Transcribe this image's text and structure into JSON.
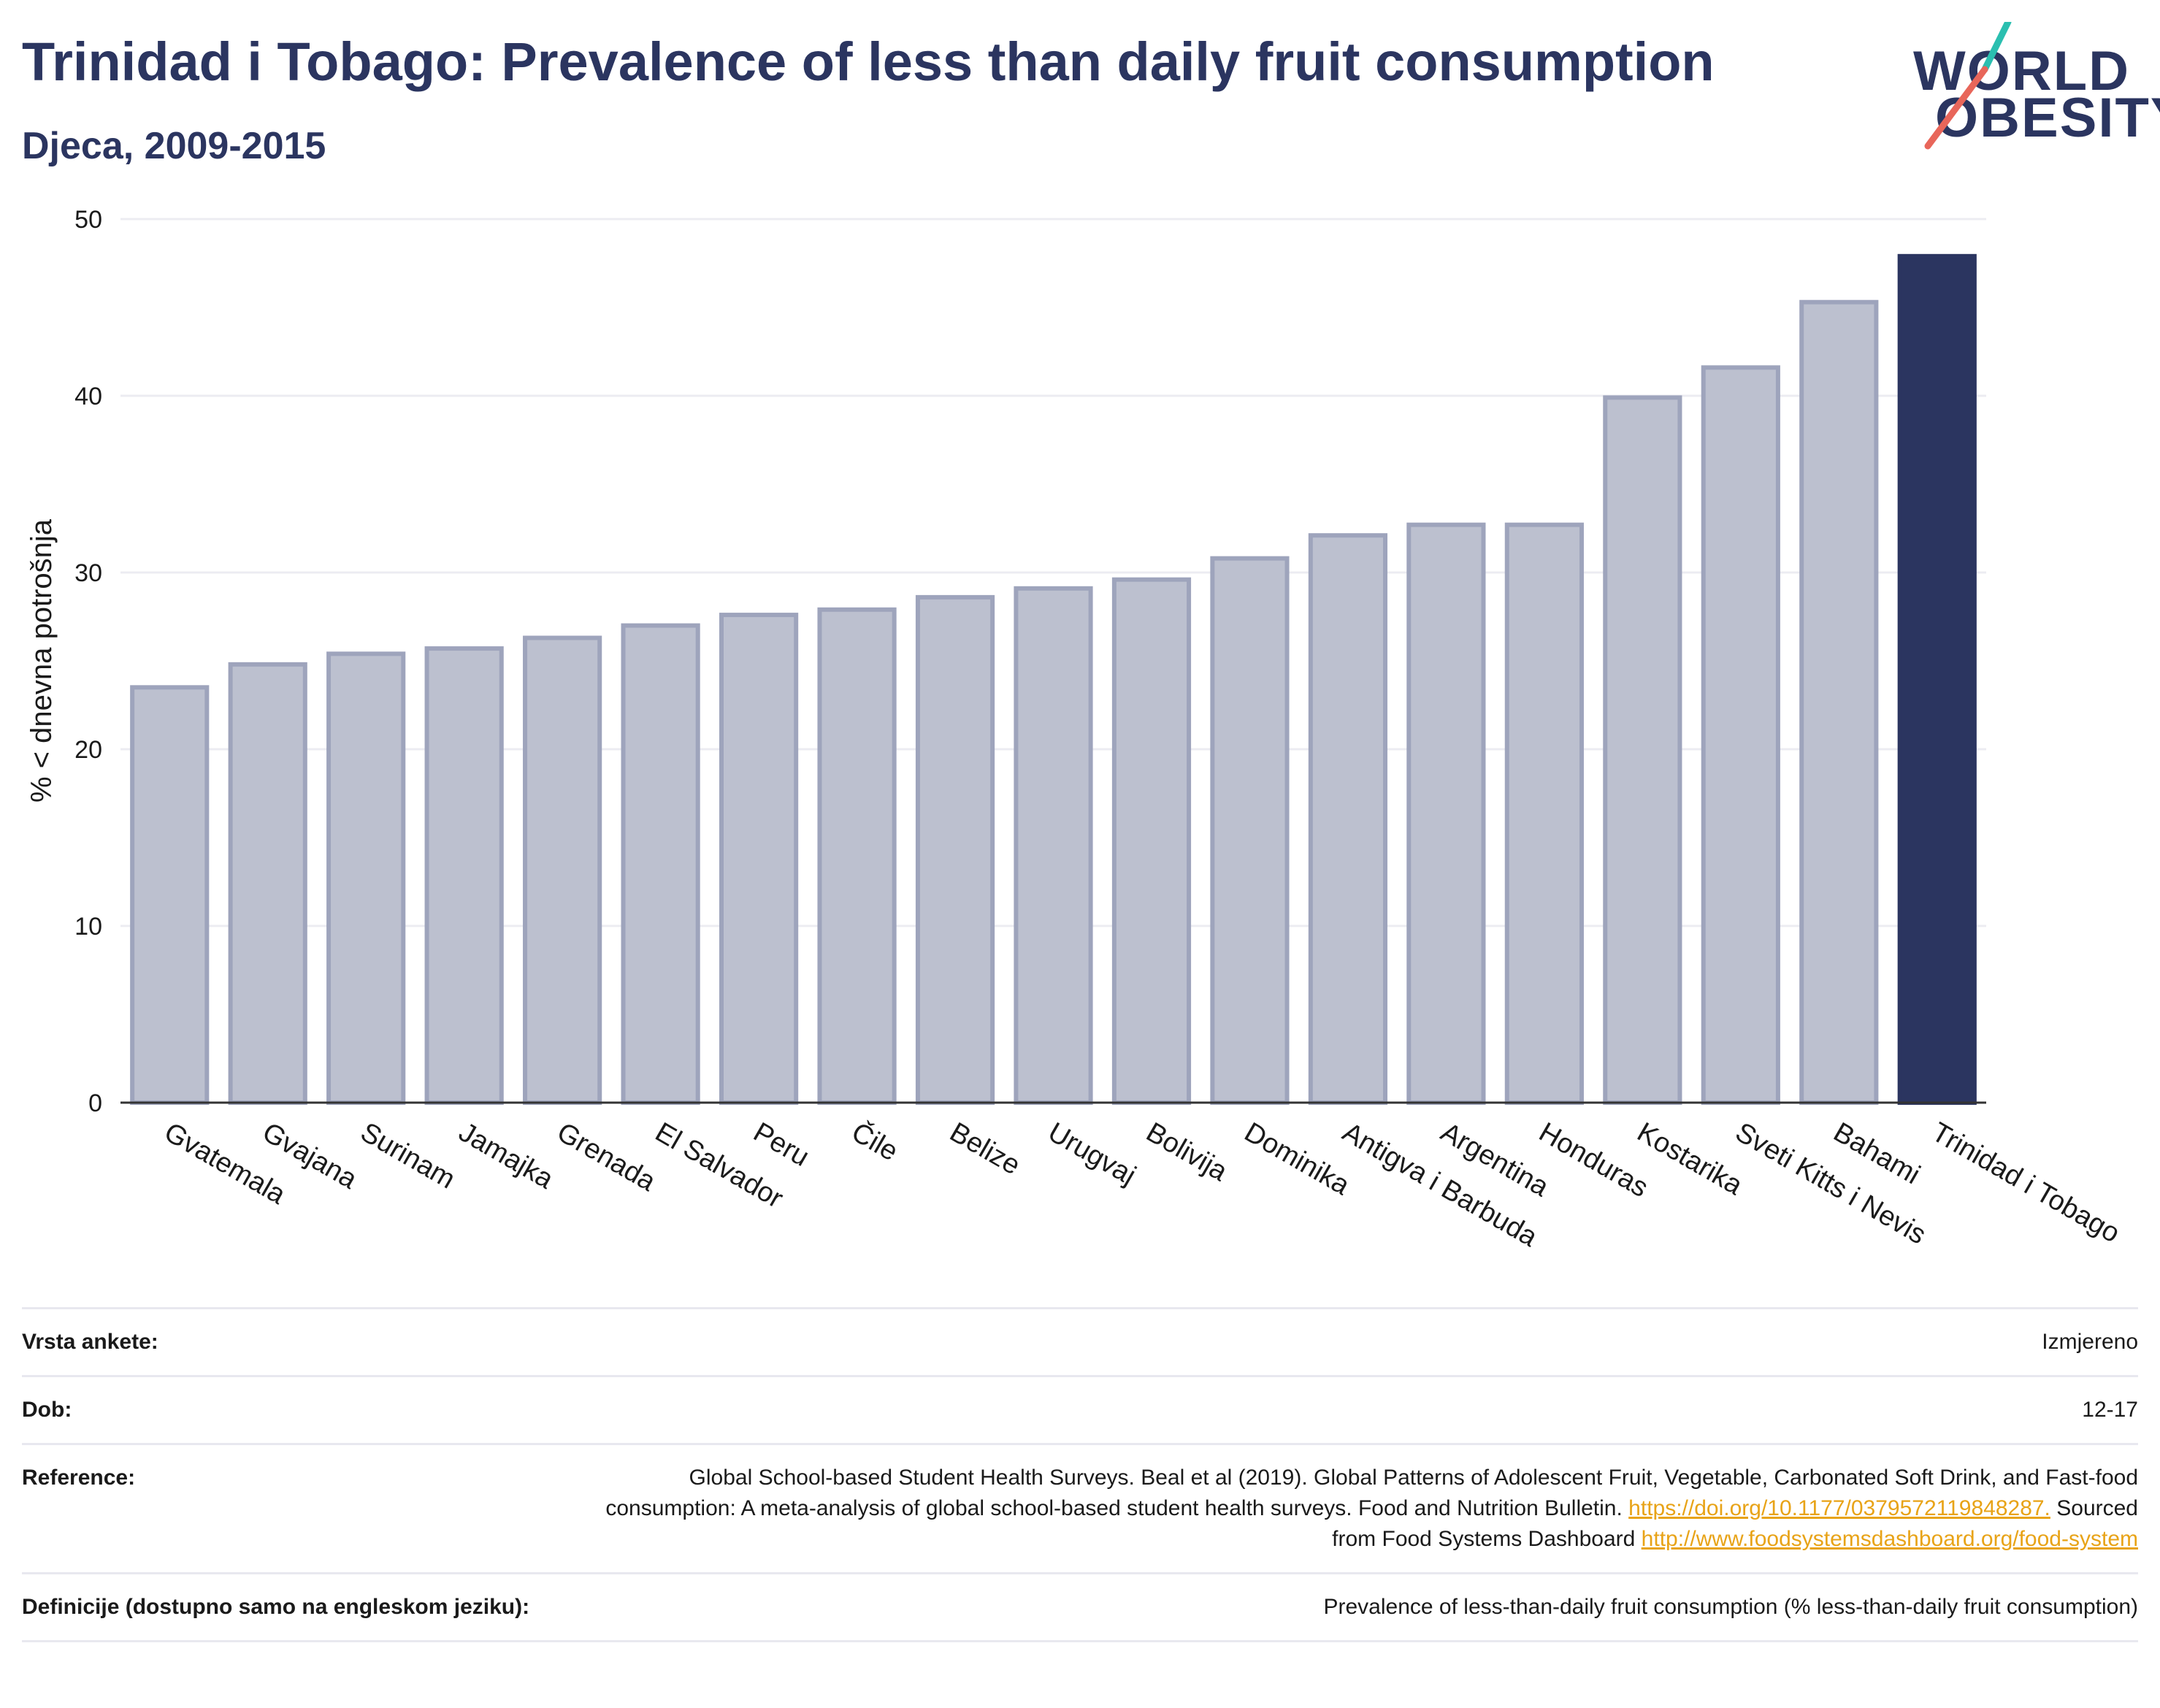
{
  "header": {
    "title": "Trinidad i Tobago: Prevalence of less than daily fruit consumption",
    "subtitle": "Djeca, 2009-2015"
  },
  "logo": {
    "line1": "WORLD",
    "line2": "OBESITY",
    "colors": {
      "text": "#2b3560",
      "slash_top": "#2bbfb0",
      "slash_bottom": "#e8665a"
    }
  },
  "chart_data": {
    "type": "bar",
    "ylabel": "% < dnevna potrošnja",
    "ylim": [
      0,
      50
    ],
    "yticks": [
      0,
      10,
      20,
      30,
      40,
      50
    ],
    "grid": true,
    "categories": [
      "Gvatemala",
      "Gvajana",
      "Surinam",
      "Jamajka",
      "Grenada",
      "El Salvador",
      "Peru",
      "Čile",
      "Belize",
      "Urugvaj",
      "Bolivija",
      "Dominika",
      "Antigva i Barbuda",
      "Argentina",
      "Honduras",
      "Kostarika",
      "Sveti Kitts i Nevis",
      "Bahami",
      "Trinidad i Tobago"
    ],
    "values": [
      23.5,
      24.8,
      25.4,
      25.7,
      26.3,
      27.0,
      27.6,
      27.9,
      28.6,
      29.1,
      29.6,
      30.8,
      32.1,
      32.7,
      32.7,
      39.9,
      41.6,
      45.3,
      47.9
    ],
    "highlight": "Trinidad i Tobago",
    "colors": {
      "bar": "#bcc0cf",
      "bar_edge": "#9ea4bc",
      "highlight": "#2b3560"
    }
  },
  "meta": [
    {
      "key": "Vrsta ankete:",
      "value": "Izmjereno"
    },
    {
      "key": "Dob:",
      "value": "12-17"
    },
    {
      "key": "Reference:",
      "value_text1": "Global School-based Student Health Surveys. Beal et al (2019). Global Patterns of Adolescent Fruit, Vegetable, Carbonated Soft Drink, and Fast-food consumption: A meta-analysis of global school-based student health surveys. Food and Nutrition Bulletin.",
      "link1": "https://doi.org/10.1177/0379572119848287.",
      "value_text2": "Sourced from Food Systems Dashboard",
      "link2": "http://www.foodsystemsdashboard.org/food-system"
    },
    {
      "key": "Definicije (dostupno samo na engleskom jeziku):",
      "value": "Prevalence of less-than-daily fruit consumption (% less-than-daily fruit consumption)"
    }
  ]
}
